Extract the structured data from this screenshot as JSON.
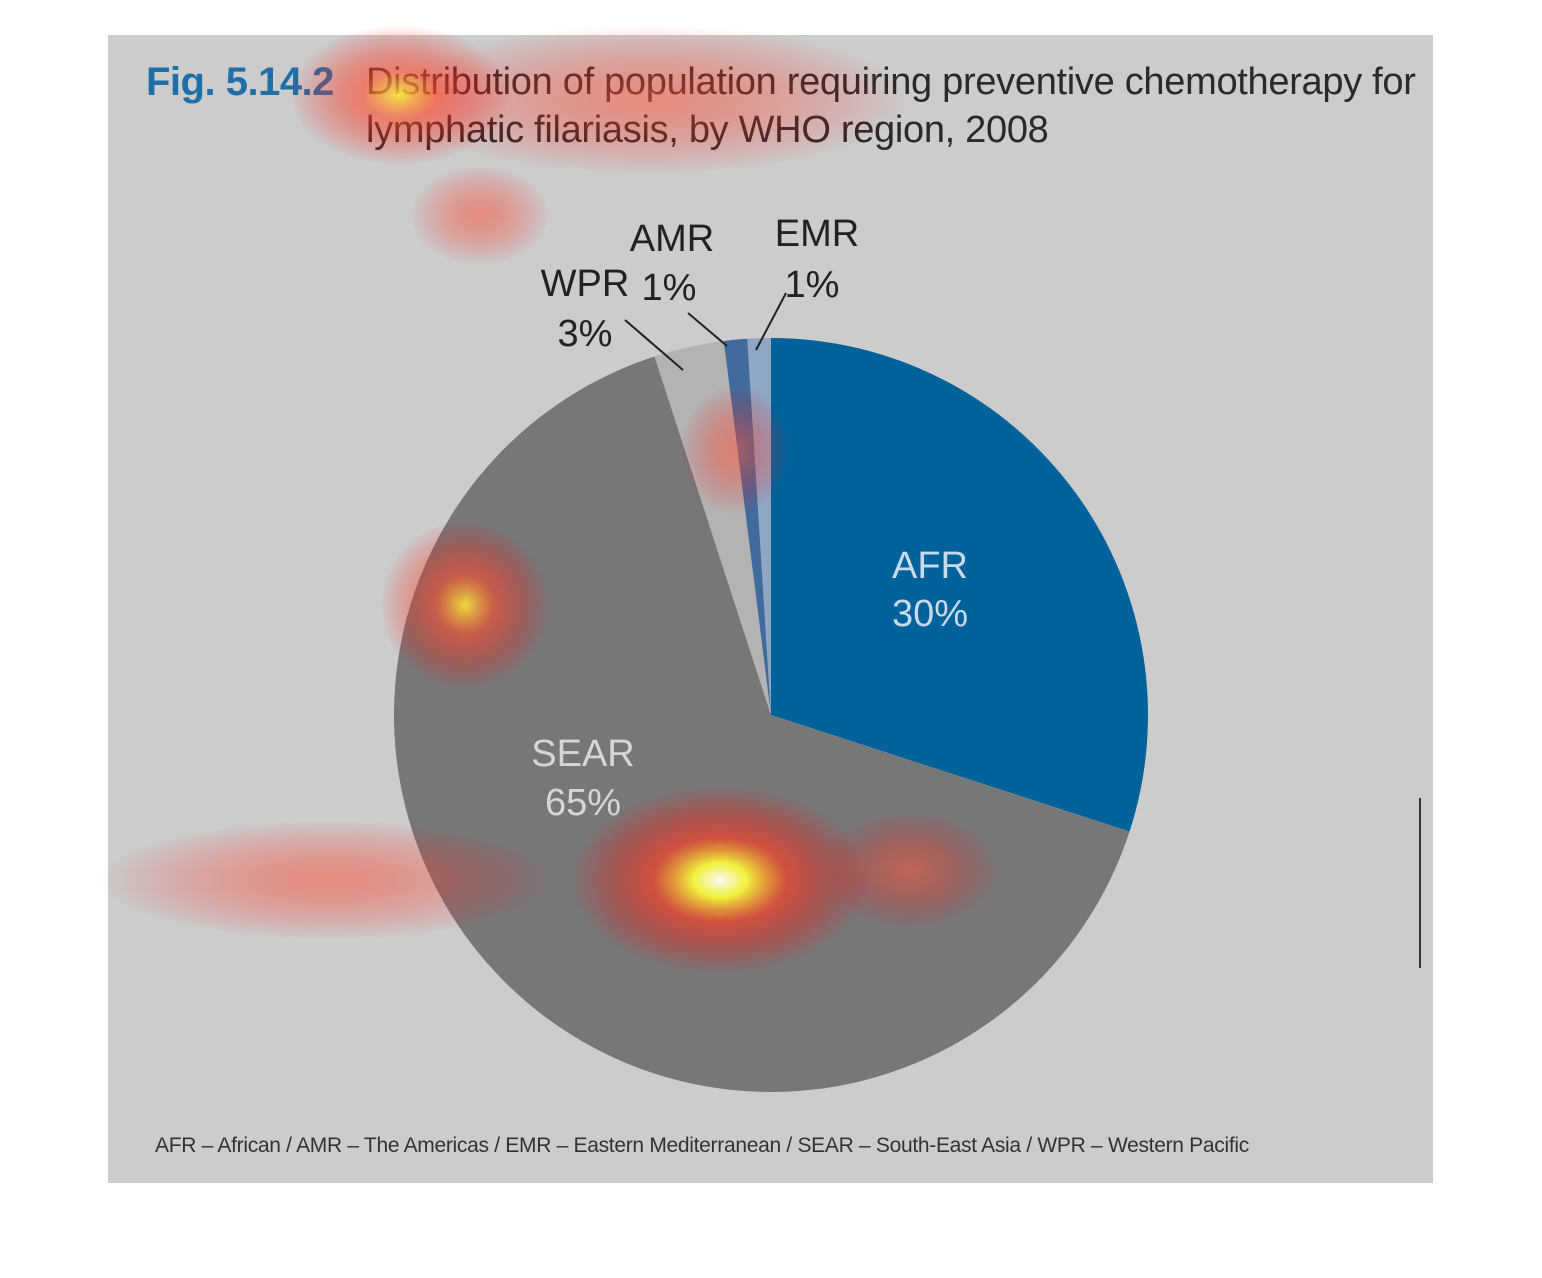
{
  "figure": {
    "number": "Fig. 5.14.2",
    "title": "Distribution of population requiring preventive chemotherapy for lymphatic filariasis, by WHO region, 2008"
  },
  "chart_data": {
    "type": "pie",
    "slices": [
      {
        "label": "AFR",
        "value": 30,
        "value_text": "30%",
        "color": "#00629b"
      },
      {
        "label": "SEAR",
        "value": 65,
        "value_text": "65%",
        "color": "#767779"
      },
      {
        "label": "WPR",
        "value": 3,
        "value_text": "3%",
        "color": "#b3b3b3"
      },
      {
        "label": "AMR",
        "value": 1,
        "value_text": "1%",
        "color": "#3f6b9d"
      },
      {
        "label": "EMR",
        "value": 1,
        "value_text": "1%",
        "color": "#8fa6c4"
      }
    ]
  },
  "footnote": "AFR – African / AMR – The Americas / EMR – Eastern Mediterranean / SEAR – South-East Asia / WPR – Western Pacific",
  "colors": {
    "panel_background": "#cccccc",
    "figure_number": "#1f6fa8",
    "heatmap_overlay": "attention heatmap (yellow-red blobs)"
  }
}
